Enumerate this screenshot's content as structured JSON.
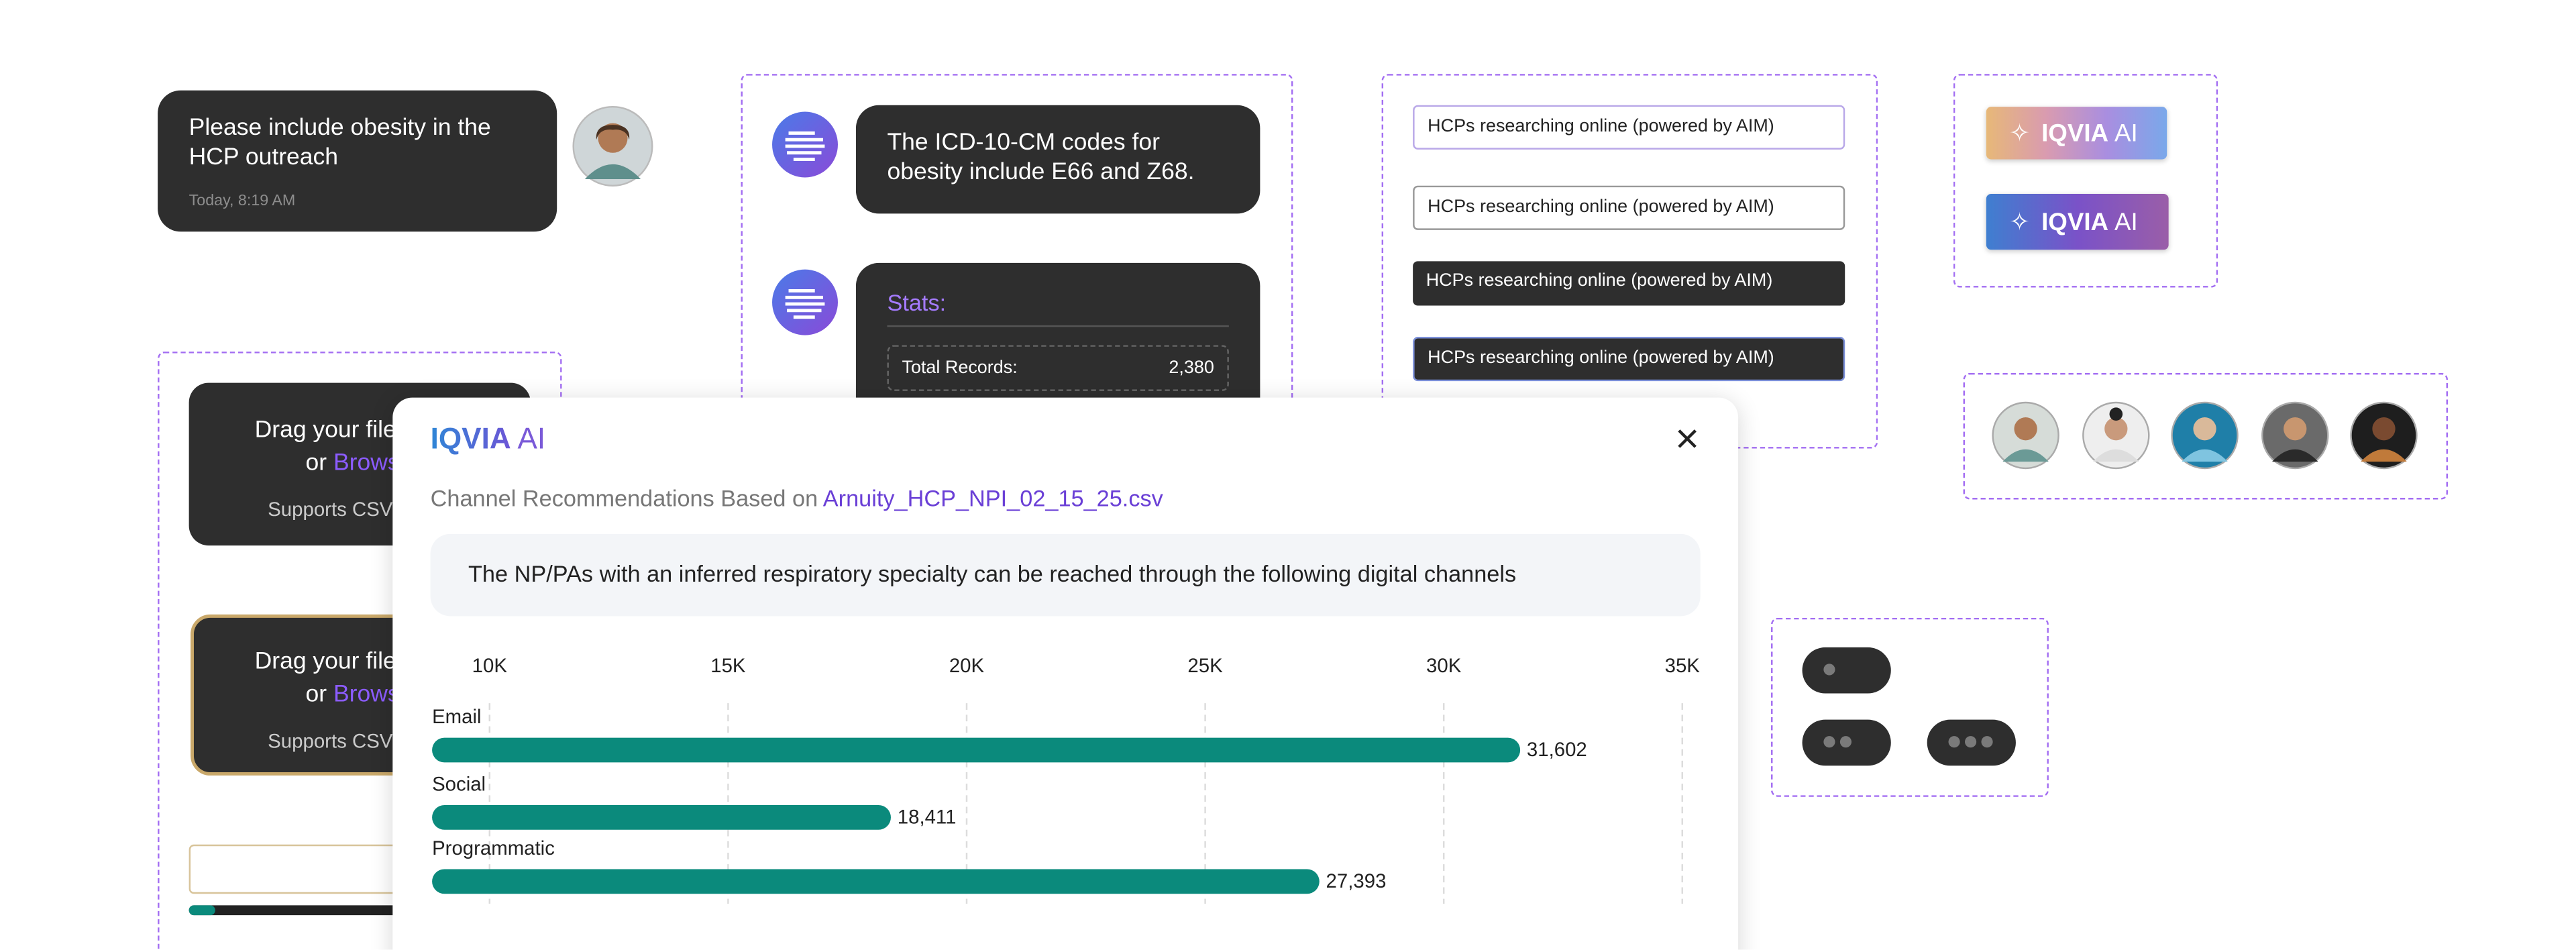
{
  "user_message": {
    "text": "Please include obesity in the HCP outreach",
    "time": "Today, 8:19 AM"
  },
  "ai_messages": {
    "reply": "The ICD-10-CM codes for obesity include E66 and Z68.",
    "stats_title": "Stats:",
    "stats_label": "Total Records:",
    "stats_value": "2,380"
  },
  "inputs": [
    "HCPs researching online (powered by AIM)",
    "HCPs researching online (powered by AIM)",
    "HCPs researching online (powered by AIM)",
    "HCPs researching online (powered by AIM)"
  ],
  "ai_buttons": [
    {
      "brand": "IQVIA",
      "suffix": "AI"
    },
    {
      "brand": "IQVIA",
      "suffix": "AI"
    }
  ],
  "uploads": [
    {
      "line1": "Drag your file",
      "or": "or",
      "browse": "Browse",
      "note": "Supports CSV"
    },
    {
      "line1": "Drag your file",
      "or": "or",
      "browse": "Browse",
      "note": "Supports CSV"
    }
  ],
  "modal": {
    "brand": "IQVIA",
    "suffix": "AI",
    "subtitle": "Channel Recommendations Based on",
    "file": "Arnuity_HCP_NPI_02_15_25.csv",
    "description": "The NP/PAs with an inferred respiratory specialty can be reached through the following digital channels"
  },
  "chart_data": {
    "type": "bar",
    "orientation": "horizontal",
    "categories": [
      "Email",
      "Social",
      "Programmatic"
    ],
    "values": [
      31602,
      18411,
      27393
    ],
    "value_labels": [
      "31,602",
      "18,411",
      "27,393"
    ],
    "color": "#0b8a7c",
    "xlim": [
      10000,
      35000
    ],
    "xticks": [
      {
        "value": 10000,
        "label": "10K"
      },
      {
        "value": 15000,
        "label": "15K"
      },
      {
        "value": 20000,
        "label": "20K"
      },
      {
        "value": 25000,
        "label": "25K"
      },
      {
        "value": 30000,
        "label": "30K"
      },
      {
        "value": 35000,
        "label": "35K"
      }
    ],
    "grid": true
  }
}
